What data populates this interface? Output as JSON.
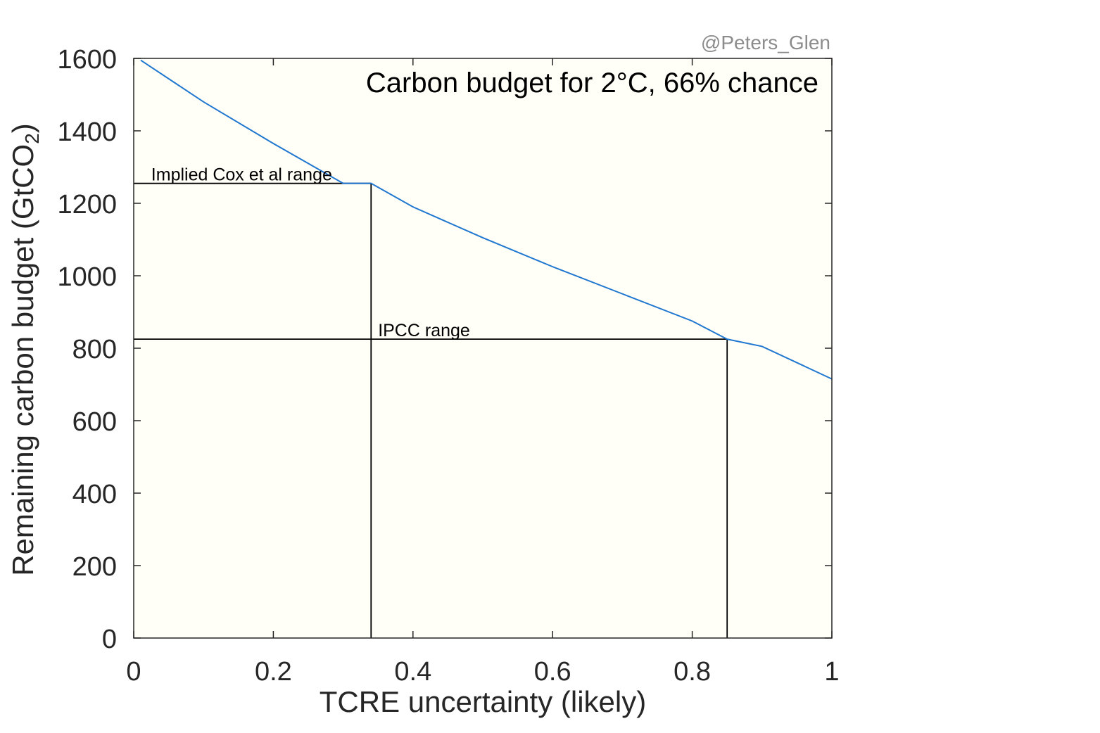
{
  "chart_data": {
    "type": "line",
    "title": "Carbon budget for 2°C, 66% chance",
    "xlabel": "TCRE uncertainty (likely)",
    "ylabel_main": "Remaining carbon budget (GtCO",
    "ylabel_subscript": "2",
    "ylabel_close": ")",
    "credit": "@Peters_Glen",
    "xlim": [
      0,
      1
    ],
    "ylim": [
      0,
      1600
    ],
    "x_ticks": [
      0,
      0.2,
      0.4,
      0.6,
      0.8,
      1
    ],
    "x_tick_labels": [
      "0",
      "0.2",
      "0.4",
      "0.6",
      "0.8",
      "1"
    ],
    "y_ticks": [
      0,
      200,
      400,
      600,
      800,
      1000,
      1200,
      1400,
      1600
    ],
    "y_tick_labels": [
      "0",
      "200",
      "400",
      "600",
      "800",
      "1000",
      "1200",
      "1400",
      "1600"
    ],
    "grid": false,
    "plot_background": "#fffff8",
    "series": [
      {
        "color": "#1f77d0",
        "x": [
          0.01,
          0.1,
          0.2,
          0.3,
          0.34,
          0.4,
          0.5,
          0.6,
          0.7,
          0.8,
          0.85,
          0.9,
          1.0
        ],
        "y": [
          1595,
          1480,
          1365,
          1255,
          1255,
          1190,
          1105,
          1025,
          950,
          875,
          825,
          805,
          715
        ]
      }
    ],
    "annotations": [
      {
        "text": "Implied Cox et al range",
        "x": 0.025,
        "y": 1255,
        "hline_y": 1255,
        "vline_x": 0.34
      },
      {
        "text": "IPCC range",
        "x": 0.35,
        "y": 825,
        "hline_y": 825,
        "vline_x": 0.85
      }
    ]
  }
}
